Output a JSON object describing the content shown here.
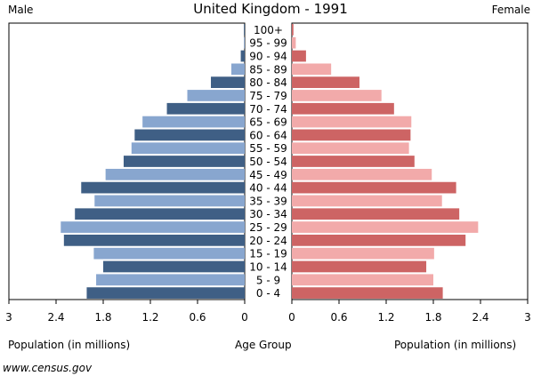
{
  "chart_data": {
    "type": "bar",
    "orientation": "horizontal",
    "layout": "population-pyramid",
    "title": "United Kingdom - 1991",
    "left_panel_label": "Male",
    "right_panel_label": "Female",
    "xlabel_left": "Population (in millions)",
    "center_label": "Age Group",
    "xlabel_right": "Population (in millions)",
    "xlim": [
      0,
      3
    ],
    "x_ticks": [
      0,
      0.6,
      1.2,
      1.8,
      2.4,
      3
    ],
    "x_tick_labels": [
      "0",
      "0.6",
      "1.2",
      "1.8",
      "2.4",
      "3"
    ],
    "categories": [
      "100+",
      "95 - 99",
      "90 - 94",
      "85 - 89",
      "80 - 84",
      "75 - 79",
      "70 - 74",
      "65 - 69",
      "60 - 64",
      "55 - 59",
      "50 - 54",
      "45 - 49",
      "40 - 44",
      "35 - 39",
      "30 - 34",
      "25 - 29",
      "20 - 24",
      "15 - 19",
      "10 - 14",
      "5 - 9",
      "0 - 4"
    ],
    "series": [
      {
        "name": "Male",
        "side": "left",
        "colors": [
          "#3f5f85",
          "#88a6cf"
        ],
        "values": [
          0.01,
          0.01,
          0.05,
          0.17,
          0.43,
          0.73,
          0.99,
          1.3,
          1.4,
          1.44,
          1.54,
          1.77,
          2.08,
          1.91,
          2.16,
          2.34,
          2.3,
          1.92,
          1.8,
          1.89,
          2.01
        ]
      },
      {
        "name": "Female",
        "side": "right",
        "colors": [
          "#cd6464",
          "#f2aaaa"
        ],
        "values": [
          0.02,
          0.05,
          0.18,
          0.5,
          0.86,
          1.14,
          1.3,
          1.52,
          1.51,
          1.49,
          1.56,
          1.78,
          2.09,
          1.91,
          2.13,
          2.37,
          2.21,
          1.81,
          1.71,
          1.8,
          1.92
        ]
      }
    ],
    "grid": false,
    "legend": "none"
  },
  "footer": {
    "source": "www.census.gov"
  }
}
